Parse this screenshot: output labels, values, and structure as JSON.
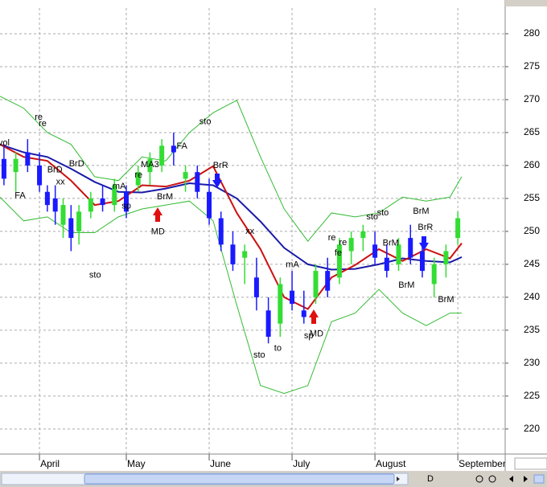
{
  "chart_data": {
    "type": "candlestick",
    "xlim": [
      -10,
      118
    ],
    "xticks": [
      {
        "value": 0,
        "label": "April"
      },
      {
        "value": 22,
        "label": "May"
      },
      {
        "value": 43,
        "label": "June"
      },
      {
        "value": 64,
        "label": "July"
      },
      {
        "value": 85,
        "label": "August"
      },
      {
        "value": 106,
        "label": "September"
      }
    ],
    "ylim": [
      216.2,
      283.9
    ],
    "yticks": [
      220,
      225,
      230,
      235,
      240,
      245,
      250,
      255,
      260,
      265,
      270,
      275,
      280
    ],
    "grid": true,
    "x": [
      -10,
      -4,
      2,
      8,
      14,
      20,
      26,
      32,
      38,
      44,
      50,
      56,
      62,
      68,
      74,
      80,
      86,
      92,
      98,
      104,
      107
    ],
    "series": [
      {
        "color": "#33bb33",
        "values": [
          270.5,
          268.7,
          265,
          263.2,
          258.3,
          257.7,
          261.3,
          260.7,
          265,
          268,
          269.9,
          261.3,
          253.4,
          248.5,
          252.8,
          252.2,
          252.8,
          255.2,
          254.6,
          255.2,
          258.3
        ]
      },
      {
        "color": "#33bb33",
        "values": [
          255.2,
          251.6,
          252.2,
          249.8,
          249.8,
          252.2,
          253.4,
          254,
          254.6,
          251.6,
          238.8,
          226.6,
          225.4,
          226.6,
          236.3,
          237.6,
          241.2,
          237.6,
          235.7,
          237.6,
          237.6
        ]
      },
      {
        "color": "#1a1aa8",
        "values": [
          263.2,
          262,
          261.3,
          259.5,
          257.5,
          256,
          255.9,
          256.5,
          257.3,
          257,
          255,
          251.5,
          247.5,
          245,
          244.2,
          244.3,
          245,
          245.9,
          245.5,
          245.3,
          246.1
        ]
      },
      {
        "color": "#cc1111",
        "values": [
          263.2,
          261.3,
          260.7,
          257.7,
          254,
          254.6,
          257,
          256.8,
          257.7,
          259.9,
          252.8,
          247.3,
          240,
          238.2,
          243,
          244.9,
          247.3,
          245.5,
          247.3,
          245.9,
          248.2
        ]
      }
    ],
    "candles": {
      "up_color": "#33dd33",
      "down_color": "#1a1aff",
      "x": [
        -9,
        -6,
        -3,
        0,
        2,
        4,
        6,
        8,
        10,
        13,
        16,
        19,
        22,
        25,
        28,
        31,
        34,
        37,
        40,
        43,
        46,
        49,
        52,
        55,
        58,
        61,
        64,
        67,
        70,
        73,
        76,
        79,
        82,
        85,
        88,
        91,
        94,
        97,
        100,
        103,
        106
      ],
      "open": [
        261,
        259,
        262,
        260,
        256,
        255,
        251,
        252,
        250,
        253,
        255,
        254,
        256,
        257,
        259,
        260,
        263,
        258,
        259,
        256,
        252,
        248,
        246,
        243,
        238,
        236,
        241,
        238,
        240,
        244,
        243,
        247,
        249,
        248,
        246,
        245,
        249,
        247,
        242,
        245,
        249
      ],
      "high": [
        263,
        262,
        264,
        262,
        257,
        257,
        255,
        254,
        254,
        256,
        257,
        258,
        257,
        260,
        262,
        264,
        265,
        260,
        260,
        258,
        253,
        250,
        248,
        246,
        240,
        243,
        244,
        241,
        245,
        246,
        249,
        250,
        251,
        250,
        248,
        249,
        251,
        249,
        246,
        248,
        253
      ],
      "low": [
        257,
        256,
        259,
        256,
        253,
        251,
        249,
        247,
        248,
        252,
        253,
        253,
        252,
        256,
        257,
        259,
        260,
        256,
        255,
        251,
        247,
        244,
        242,
        238,
        233,
        234,
        238,
        236,
        239,
        240,
        242,
        245,
        247,
        245,
        243,
        244,
        245,
        243,
        240,
        243,
        248
      ],
      "close": [
        258,
        261,
        260,
        257,
        254,
        253,
        254,
        249,
        253,
        255,
        254,
        257,
        253,
        259,
        261,
        263,
        262,
        259,
        256,
        252,
        248,
        245,
        247,
        240,
        234,
        242,
        239,
        237,
        244,
        241,
        248,
        249,
        250,
        246,
        244,
        248,
        246,
        244,
        245,
        247,
        252
      ]
    },
    "annotations": [
      {
        "text": "vol",
        "x": -9,
        "y": 263.4
      },
      {
        "text": "re",
        "x": -0.2,
        "y": 267.3
      },
      {
        "text": "re",
        "x": 0.8,
        "y": 266.3
      },
      {
        "text": "FA",
        "x": -4.9,
        "y": 255.4
      },
      {
        "text": "BrD",
        "x": 9.4,
        "y": 260.2
      },
      {
        "text": "BrD",
        "x": 3.9,
        "y": 259.3
      },
      {
        "text": "xx",
        "x": 5.3,
        "y": 257.5
      },
      {
        "text": "sto",
        "x": 14.1,
        "y": 243.3
      },
      {
        "text": "mA",
        "x": 20.2,
        "y": 256.8
      },
      {
        "text": "re",
        "x": 25.1,
        "y": 258.5
      },
      {
        "text": "MA3",
        "x": 28,
        "y": 260.1
      },
      {
        "text": "sp",
        "x": 22,
        "y": 253.8
      },
      {
        "text": "BrM",
        "x": 31.8,
        "y": 255.2
      },
      {
        "text": "MD",
        "x": 30,
        "y": 249.9
      },
      {
        "text": "FA",
        "x": 36.1,
        "y": 262.9
      },
      {
        "text": "sto",
        "x": 42,
        "y": 266.6
      },
      {
        "text": "BrR",
        "x": 45.9,
        "y": 260
      },
      {
        "text": "xx",
        "x": 53.3,
        "y": 250
      },
      {
        "text": "mA",
        "x": 64.1,
        "y": 244.9
      },
      {
        "text": "sto",
        "x": 55.7,
        "y": 231.2
      },
      {
        "text": "to",
        "x": 60.4,
        "y": 232.2
      },
      {
        "text": "sp",
        "x": 68.2,
        "y": 234.1
      },
      {
        "text": "MD",
        "x": 70.2,
        "y": 234.4
      },
      {
        "text": "re",
        "x": 74.1,
        "y": 249
      },
      {
        "text": "fe",
        "x": 75.7,
        "y": 246.7
      },
      {
        "text": "re",
        "x": 76.9,
        "y": 248.3
      },
      {
        "text": "sto",
        "x": 84.3,
        "y": 252.2
      },
      {
        "text": "sto",
        "x": 87,
        "y": 252.8
      },
      {
        "text": "BrM",
        "x": 89,
        "y": 248.2
      },
      {
        "text": "BrM",
        "x": 93,
        "y": 241.8
      },
      {
        "text": "BrM",
        "x": 96.7,
        "y": 253
      },
      {
        "text": "BrR",
        "x": 97.8,
        "y": 250.6
      },
      {
        "text": "BrM",
        "x": 103,
        "y": 239.6
      }
    ],
    "toolbar_label": "D"
  }
}
